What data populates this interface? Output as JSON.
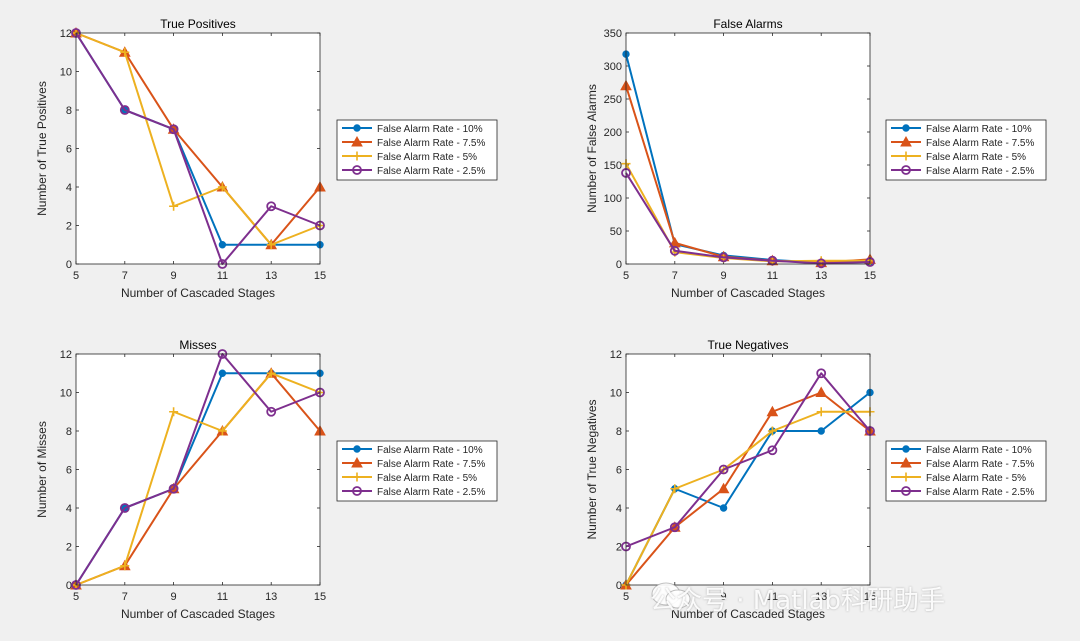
{
  "chart_data": [
    {
      "type": "line",
      "title": "True Positives",
      "xlabel": "Number of Cascaded Stages",
      "ylabel": "Number of True Positives",
      "x": [
        5,
        7,
        9,
        11,
        13,
        15
      ],
      "xticks": [
        5,
        7,
        9,
        11,
        13,
        15
      ],
      "xlim": [
        5,
        15
      ],
      "ylim": [
        0,
        12
      ],
      "yticks": [
        0,
        2,
        4,
        6,
        8,
        10,
        12
      ],
      "legend_position": "outside-right",
      "series": [
        {
          "name": "False Alarm Rate - 10%",
          "marker": "dot",
          "values": [
            12,
            8,
            7,
            1,
            1,
            1
          ]
        },
        {
          "name": "False Alarm Rate - 7.5%",
          "marker": "triangle",
          "values": [
            12,
            11,
            7,
            4,
            1,
            4
          ]
        },
        {
          "name": "False Alarm Rate - 5%",
          "marker": "plus",
          "values": [
            12,
            11,
            3,
            4,
            1,
            2
          ]
        },
        {
          "name": "False Alarm Rate - 2.5%",
          "marker": "circle",
          "values": [
            12,
            8,
            7,
            0,
            3,
            2
          ]
        }
      ]
    },
    {
      "type": "line",
      "title": "False Alarms",
      "xlabel": "Number of Cascaded Stages",
      "ylabel": "Number of False Alarms",
      "x": [
        5,
        7,
        9,
        11,
        13,
        15
      ],
      "xticks": [
        5,
        7,
        9,
        11,
        13,
        15
      ],
      "xlim": [
        5,
        15
      ],
      "ylim": [
        0,
        350
      ],
      "yticks": [
        0,
        50,
        100,
        150,
        200,
        250,
        300,
        350
      ],
      "legend_position": "outside-right",
      "series": [
        {
          "name": "False Alarm Rate - 10%",
          "marker": "dot",
          "values": [
            318,
            30,
            13,
            6,
            2,
            3
          ]
        },
        {
          "name": "False Alarm Rate - 7.5%",
          "marker": "triangle",
          "values": [
            270,
            32,
            11,
            5,
            2,
            7
          ]
        },
        {
          "name": "False Alarm Rate - 5%",
          "marker": "plus",
          "values": [
            152,
            18,
            9,
            4,
            5,
            5
          ]
        },
        {
          "name": "False Alarm Rate - 2.5%",
          "marker": "circle",
          "values": [
            138,
            20,
            10,
            5,
            1,
            3
          ]
        }
      ]
    },
    {
      "type": "line",
      "title": "Misses",
      "xlabel": "Number of Cascaded Stages",
      "ylabel": "Number of Misses",
      "x": [
        5,
        7,
        9,
        11,
        13,
        15
      ],
      "xticks": [
        5,
        7,
        9,
        11,
        13,
        15
      ],
      "xlim": [
        5,
        15
      ],
      "ylim": [
        0,
        12
      ],
      "yticks": [
        0,
        2,
        4,
        6,
        8,
        10,
        12
      ],
      "legend_position": "outside-right",
      "series": [
        {
          "name": "False Alarm Rate - 10%",
          "marker": "dot",
          "values": [
            0,
            4,
            5,
            11,
            11,
            11
          ]
        },
        {
          "name": "False Alarm Rate - 7.5%",
          "marker": "triangle",
          "values": [
            0,
            1,
            5,
            8,
            11,
            8
          ]
        },
        {
          "name": "False Alarm Rate - 5%",
          "marker": "plus",
          "values": [
            0,
            1,
            9,
            8,
            11,
            10
          ]
        },
        {
          "name": "False Alarm Rate - 2.5%",
          "marker": "circle",
          "values": [
            0,
            4,
            5,
            12,
            9,
            10
          ]
        }
      ]
    },
    {
      "type": "line",
      "title": "True Negatives",
      "xlabel": "Number of Cascaded Stages",
      "ylabel": "Number of True Negatives",
      "x": [
        5,
        7,
        9,
        11,
        13,
        15
      ],
      "xticks": [
        5,
        7,
        9,
        11,
        13,
        15
      ],
      "xlim": [
        5,
        15
      ],
      "ylim": [
        0,
        12
      ],
      "yticks": [
        0,
        2,
        4,
        6,
        8,
        10,
        12
      ],
      "legend_position": "outside-right",
      "series": [
        {
          "name": "False Alarm Rate - 10%",
          "marker": "dot",
          "values": [
            0,
            5,
            4,
            8,
            8,
            10
          ]
        },
        {
          "name": "False Alarm Rate - 7.5%",
          "marker": "triangle",
          "values": [
            0,
            3,
            5,
            9,
            10,
            8
          ]
        },
        {
          "name": "False Alarm Rate - 5%",
          "marker": "plus",
          "values": [
            0,
            5,
            6,
            8,
            9,
            9
          ]
        },
        {
          "name": "False Alarm Rate - 2.5%",
          "marker": "circle",
          "values": [
            2,
            3,
            6,
            7,
            11,
            8
          ]
        }
      ]
    }
  ],
  "series_colors": [
    "#0072bd",
    "#d95319",
    "#edb120",
    "#7e2f8e"
  ],
  "watermark": "公众号 · Matlab科研助手"
}
